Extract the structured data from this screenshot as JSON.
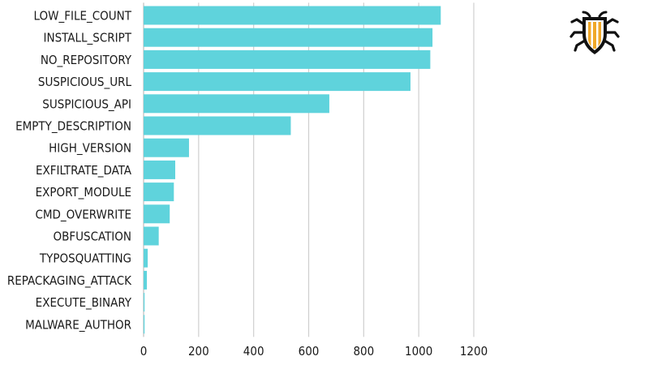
{
  "chart_data": {
    "type": "bar",
    "orientation": "horizontal",
    "categories": [
      "LOW_FILE_COUNT",
      "INSTALL_SCRIPT",
      "NO_REPOSITORY",
      "SUSPICIOUS_URL",
      "SUSPICIOUS_API",
      "EMPTY_DESCRIPTION",
      "HIGH_VERSION",
      "EXFILTRATE_DATA",
      "EXPORT_MODULE",
      "CMD_OVERWRITE",
      "OBFUSCATION",
      "TYPOSQUATTING",
      "REPACKAGING_ATTACK",
      "EXECUTE_BINARY",
      "MALWARE_AUTHOR"
    ],
    "values": [
      1080,
      1050,
      1042,
      970,
      675,
      535,
      165,
      115,
      110,
      95,
      55,
      15,
      12,
      3,
      2
    ],
    "title": "",
    "xlabel": "",
    "ylabel": "",
    "xlim": [
      0,
      1200
    ],
    "xticks": [
      "0",
      "200",
      "400",
      "600",
      "800",
      "1000",
      "1200"
    ],
    "grid": "vertical",
    "legend": "none",
    "bar_color": "#5fd3dc"
  },
  "logo": {
    "icon": "shield-bug-icon",
    "colors": {
      "outline": "#111111",
      "stripe": "#f0a82a"
    }
  }
}
